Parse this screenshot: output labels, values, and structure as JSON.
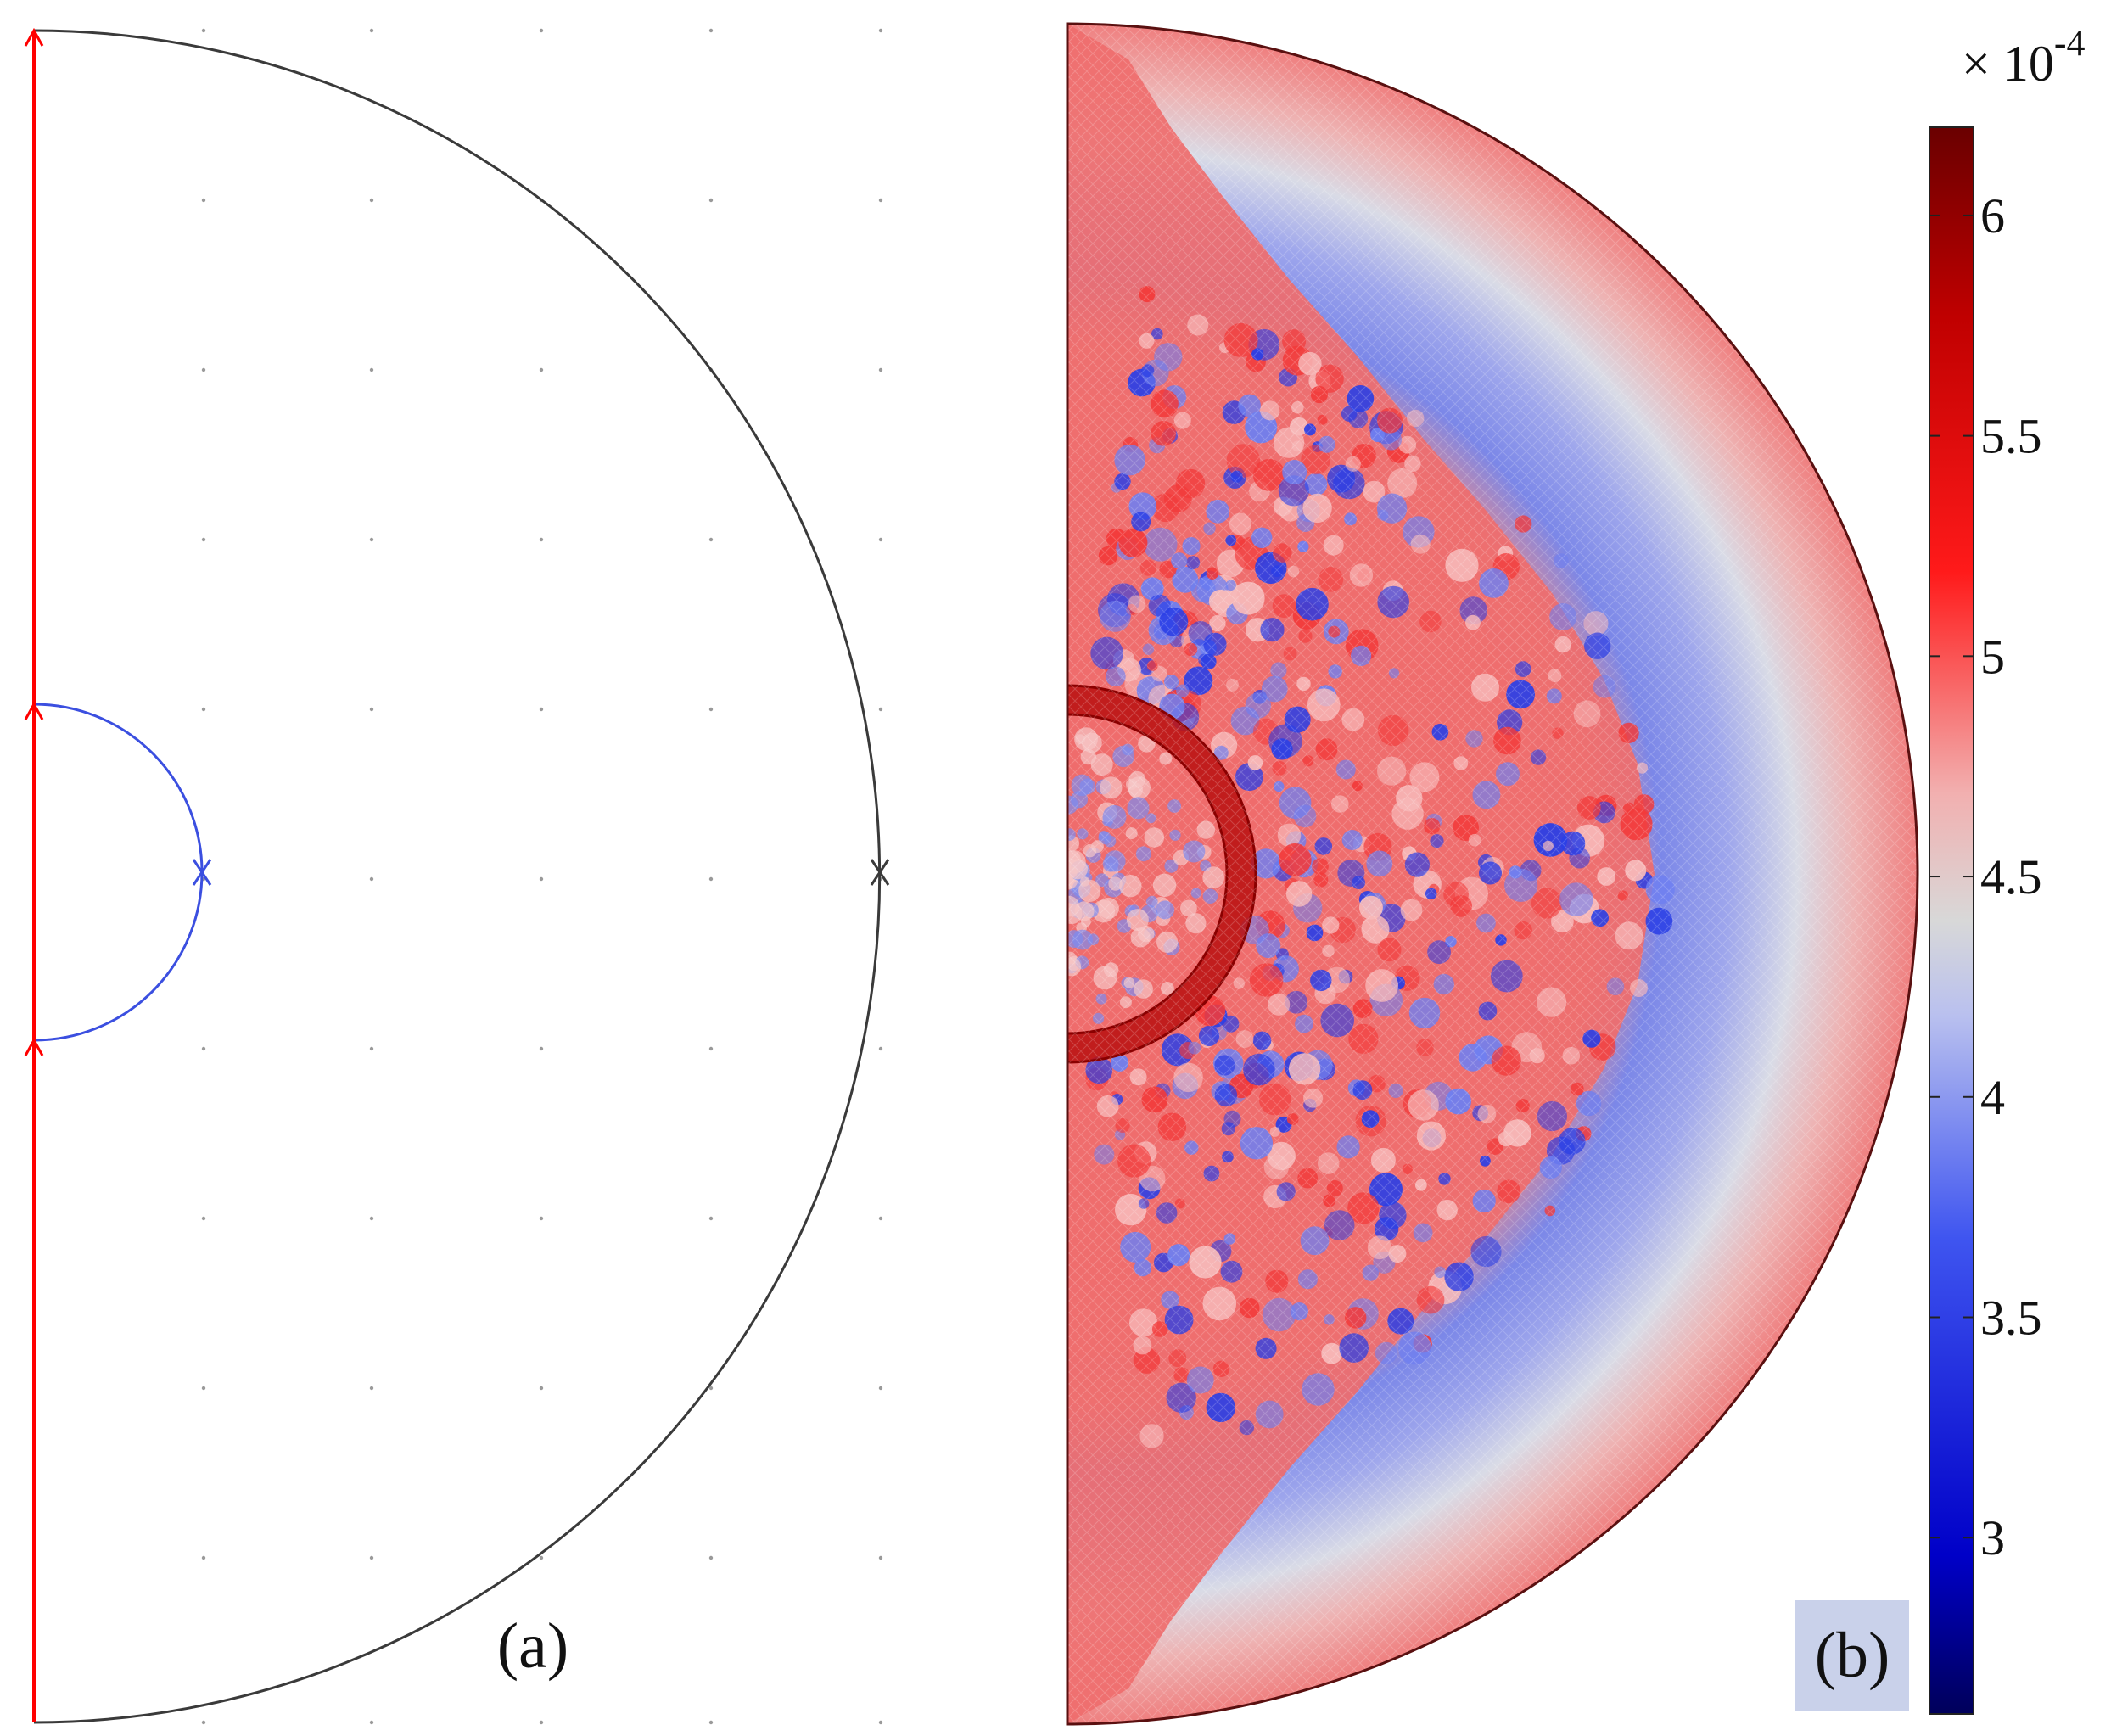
{
  "panel_a": {
    "label": "(a)",
    "colors": {
      "outer_boundary": "#3a3a3a",
      "inner_boundary": "#3b4fe0",
      "axis": "#ff0000",
      "grid_dots": "#9a9a9a"
    }
  },
  "panel_b": {
    "label": "(b)",
    "label_box_color": "#c9d1ea",
    "colorbar": {
      "scale_base": "× 10",
      "scale_exponent": "-4",
      "ticks": [
        "6",
        "5.5",
        "5",
        "4.5",
        "4",
        "3.5",
        "3"
      ],
      "tick_values": [
        6,
        5.5,
        5,
        4.5,
        4,
        3.5,
        3
      ],
      "range": [
        2.6,
        6.2
      ],
      "colormap": [
        "#00006a",
        "#0000d8",
        "#3b5cf0",
        "#b8bff0",
        "#d9d9d9",
        "#f0a3a3",
        "#ff1a1a",
        "#b00000",
        "#6a0000"
      ]
    }
  }
}
